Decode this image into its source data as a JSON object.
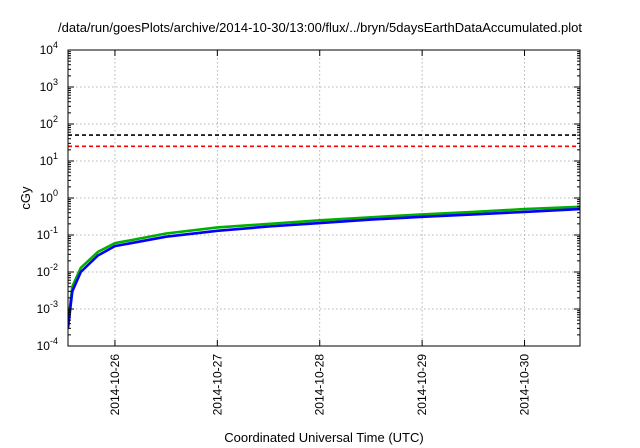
{
  "chart_data": {
    "type": "line",
    "title": "/data/run/goesPlots/archive/2014-10-30/13:00/flux/../bryn/5daysEarthDataAccumulated.plot",
    "xlabel": "Coordinated Universal Time (UTC)",
    "ylabel": "cGy",
    "yscale": "log",
    "ylim": [
      0.0001,
      10000
    ],
    "xlim": [
      "2014-10-25 13:00",
      "2014-10-30 13:00"
    ],
    "y_ticks": [
      {
        "value": 0.0001,
        "base": "10",
        "exp": "-4"
      },
      {
        "value": 0.001,
        "base": "10",
        "exp": "-3"
      },
      {
        "value": 0.01,
        "base": "10",
        "exp": "-2"
      },
      {
        "value": 0.1,
        "base": "10",
        "exp": "-1"
      },
      {
        "value": 1,
        "base": "10",
        "exp": "0"
      },
      {
        "value": 10,
        "base": "10",
        "exp": "1"
      },
      {
        "value": 100,
        "base": "10",
        "exp": "2"
      },
      {
        "value": 1000,
        "base": "10",
        "exp": "3"
      },
      {
        "value": 10000,
        "base": "10",
        "exp": "4"
      }
    ],
    "x_ticks": [
      "2014-10-26",
      "2014-10-27",
      "2014-10-28",
      "2014-10-29",
      "2014-10-30"
    ],
    "grid": true,
    "series": [
      {
        "color": "#00b000",
        "style": "solid",
        "x": [
          "2014-10-25 13:00",
          "2014-10-25 14:00",
          "2014-10-25 16:00",
          "2014-10-25 20:00",
          "2014-10-26 00:00",
          "2014-10-26 12:00",
          "2014-10-27 00:00",
          "2014-10-27 12:00",
          "2014-10-28 00:00",
          "2014-10-28 12:00",
          "2014-10-29 00:00",
          "2014-10-29 12:00",
          "2014-10-30 00:00",
          "2014-10-30 13:00"
        ],
        "y": [
          0.0004,
          0.004,
          0.013,
          0.035,
          0.06,
          0.11,
          0.16,
          0.2,
          0.25,
          0.3,
          0.36,
          0.42,
          0.5,
          0.58
        ]
      },
      {
        "color": "#0000ff",
        "style": "solid",
        "x": [
          "2014-10-25 13:00",
          "2014-10-25 14:00",
          "2014-10-25 16:00",
          "2014-10-25 20:00",
          "2014-10-26 00:00",
          "2014-10-26 12:00",
          "2014-10-27 00:00",
          "2014-10-27 12:00",
          "2014-10-28 00:00",
          "2014-10-28 12:00",
          "2014-10-29 00:00",
          "2014-10-29 12:00",
          "2014-10-30 00:00",
          "2014-10-30 13:00"
        ],
        "y": [
          0.0003,
          0.003,
          0.01,
          0.028,
          0.05,
          0.09,
          0.13,
          0.17,
          0.21,
          0.26,
          0.31,
          0.36,
          0.42,
          0.5
        ]
      },
      {
        "color": "#000000",
        "style": "dashed",
        "x": [
          "2014-10-25 13:00",
          "2014-10-30 13:00"
        ],
        "y": [
          50,
          50
        ]
      },
      {
        "color": "#ff0000",
        "style": "dashed",
        "x": [
          "2014-10-25 13:00",
          "2014-10-30 13:00"
        ],
        "y": [
          25,
          25
        ]
      }
    ]
  }
}
